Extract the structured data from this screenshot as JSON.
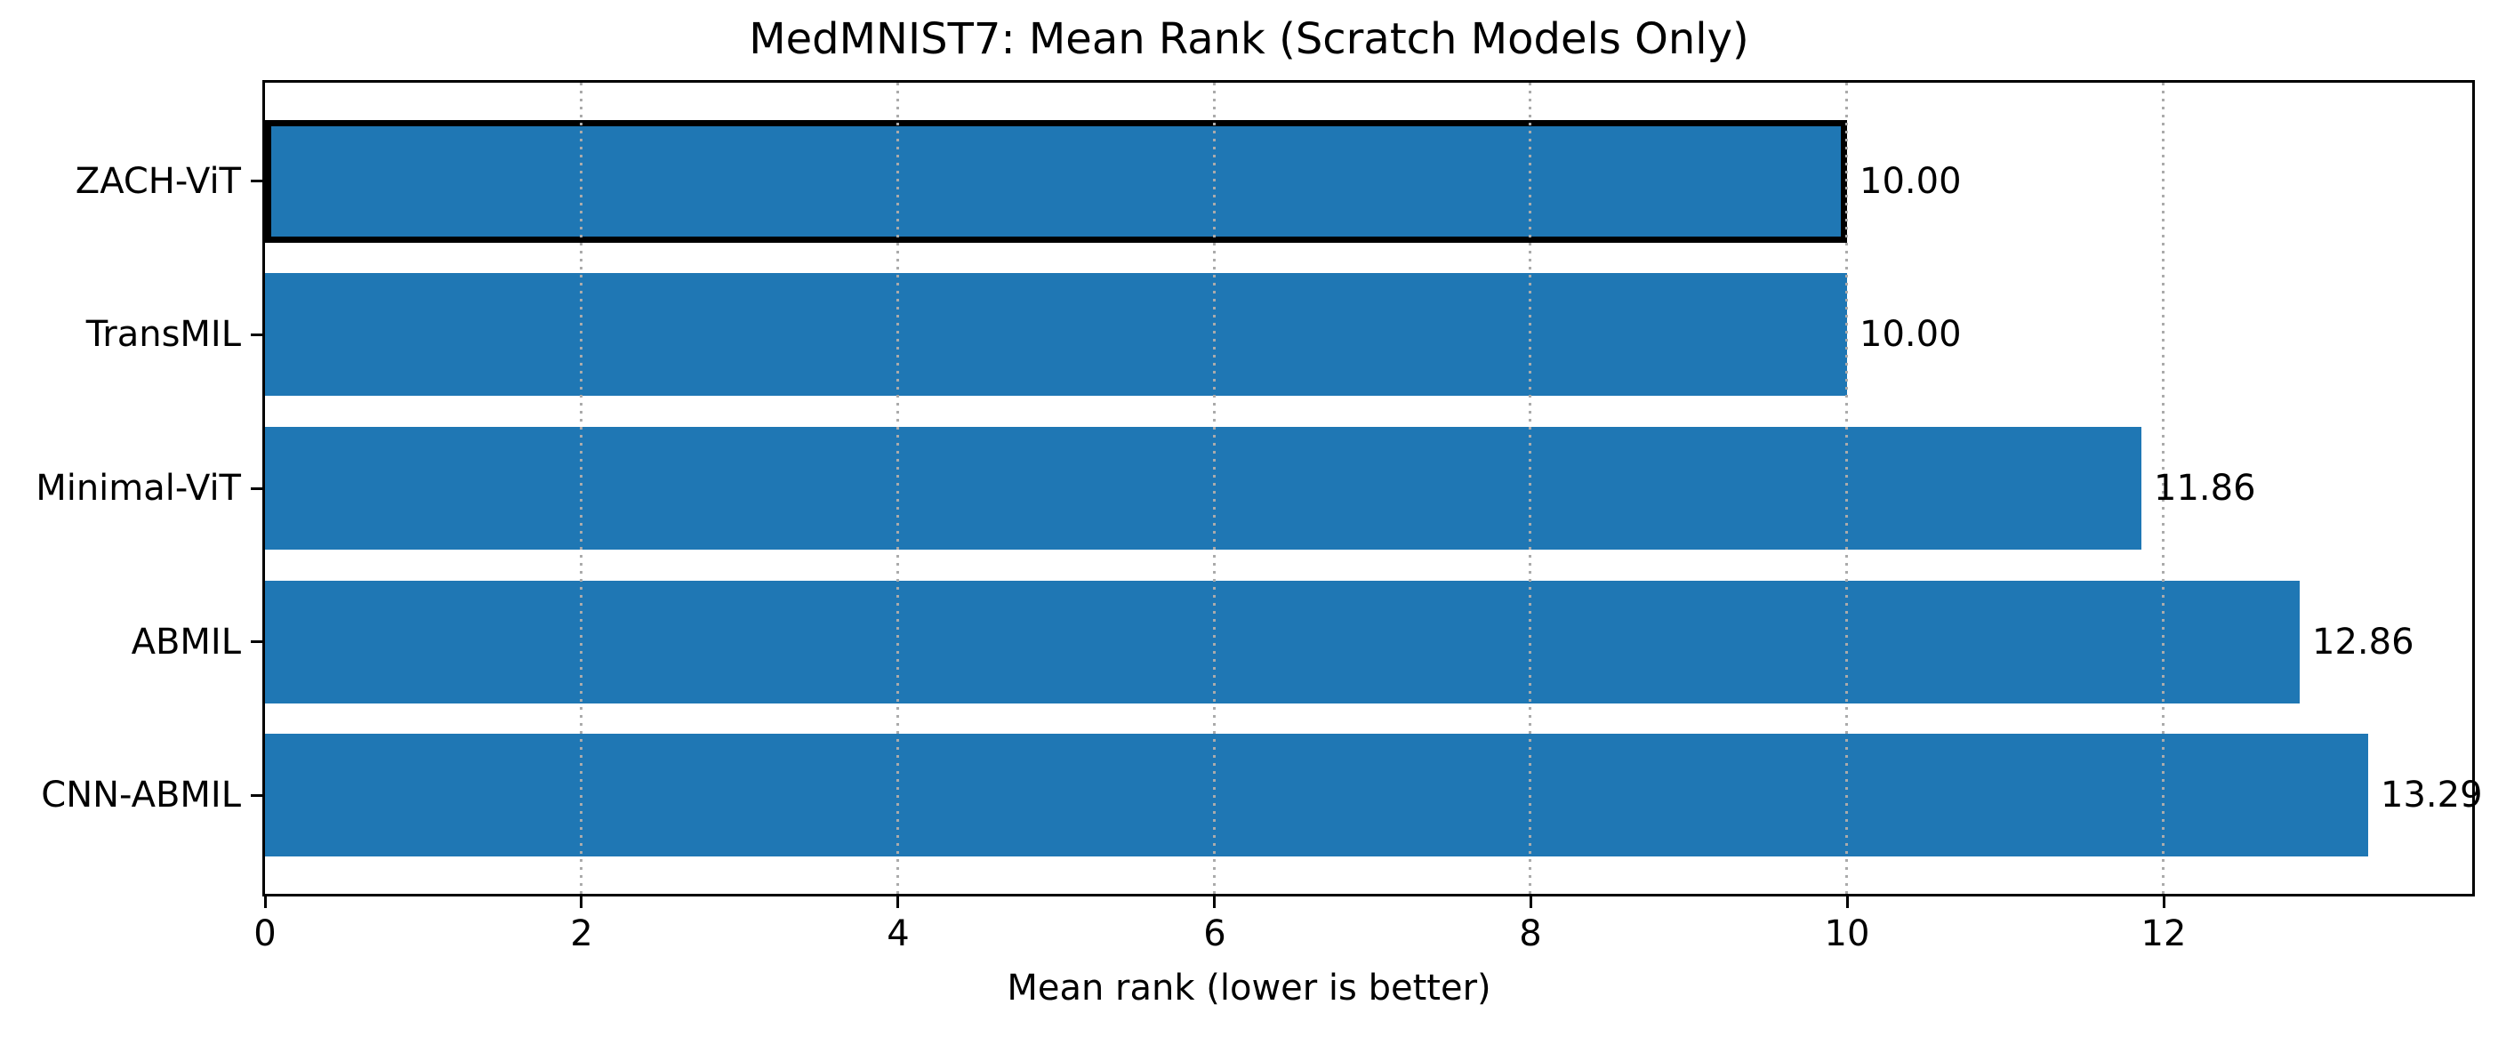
{
  "chart_data": {
    "type": "bar",
    "orientation": "horizontal",
    "title": "MedMNIST7: Mean Rank (Scratch Models Only)",
    "xlabel": "Mean rank (lower is better)",
    "categories": [
      "ZACH-ViT",
      "TransMIL",
      "Minimal-ViT",
      "ABMIL",
      "CNN-ABMIL"
    ],
    "values": [
      10.0,
      10.0,
      11.86,
      12.86,
      13.29
    ],
    "bar_labels": [
      "10.00",
      "10.00",
      "11.86",
      "12.86",
      "13.29"
    ],
    "xticks": [
      0,
      2,
      4,
      6,
      8,
      10,
      12
    ],
    "xtick_labels": [
      "0",
      "2",
      "4",
      "6",
      "8",
      "10",
      "12"
    ],
    "xlim": [
      0,
      13.95
    ],
    "bar_color": "#1f77b4",
    "highlighted_category": "ZACH-ViT",
    "highlight_edge_color": "#000000",
    "grid": {
      "axis": "x",
      "linestyle": "dotted",
      "color": "#ababab",
      "on": true,
      "drawn_above_bars": true
    },
    "legend": {
      "visible": false
    },
    "background_color": "#ffffff",
    "text_color": "#000000"
  }
}
